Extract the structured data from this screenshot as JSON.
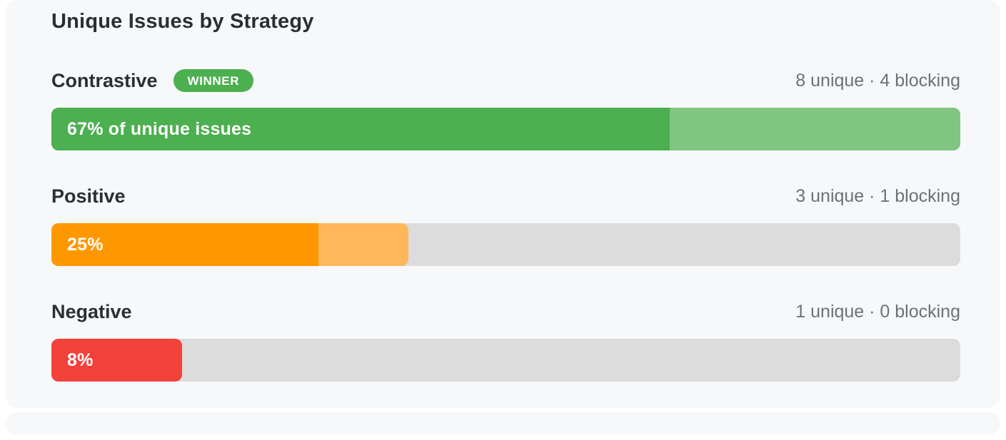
{
  "chart_data": {
    "type": "bar",
    "orientation": "horizontal",
    "title": "Unique Issues by Strategy",
    "categories": [
      "Contrastive",
      "Positive",
      "Negative"
    ],
    "series": [
      {
        "name": "unique issues",
        "values": [
          8,
          3,
          1
        ]
      },
      {
        "name": "blocking issues",
        "values": [
          4,
          1,
          0
        ]
      }
    ],
    "percent_of_unique_issues": [
      67,
      25,
      8
    ],
    "legend": "none",
    "grid": false,
    "badge_color": "#4caf50",
    "track_color": "#dcdcdc",
    "card_background": "#f7f8fa",
    "rows": [
      {
        "label": "Contrastive",
        "badge": "WINNER",
        "meta": "8 unique · 4 blocking",
        "bar_label": "67% of unique issues",
        "unique": 8,
        "blocking": 4,
        "percent": 67,
        "colors": {
          "primary": "#4caf50",
          "secondary": "#80c682"
        },
        "widths": {
          "primary_pct": 68,
          "total_pct": 100
        }
      },
      {
        "label": "Positive",
        "badge": "",
        "meta": "3 unique · 1 blocking",
        "bar_label": "25%",
        "unique": 3,
        "blocking": 1,
        "percent": 25,
        "colors": {
          "primary": "#ff9800",
          "secondary": "#ffb75c"
        },
        "widths": {
          "primary_pct": 29.4,
          "total_pct": 39.3
        }
      },
      {
        "label": "Negative",
        "badge": "",
        "meta": "1 unique · 0 blocking",
        "bar_label": "8%",
        "unique": 1,
        "blocking": 0,
        "percent": 8,
        "colors": {
          "primary": "#f2423a",
          "secondary": "#f2423a"
        },
        "widths": {
          "primary_pct": 14.4,
          "total_pct": 14.4
        }
      }
    ]
  }
}
